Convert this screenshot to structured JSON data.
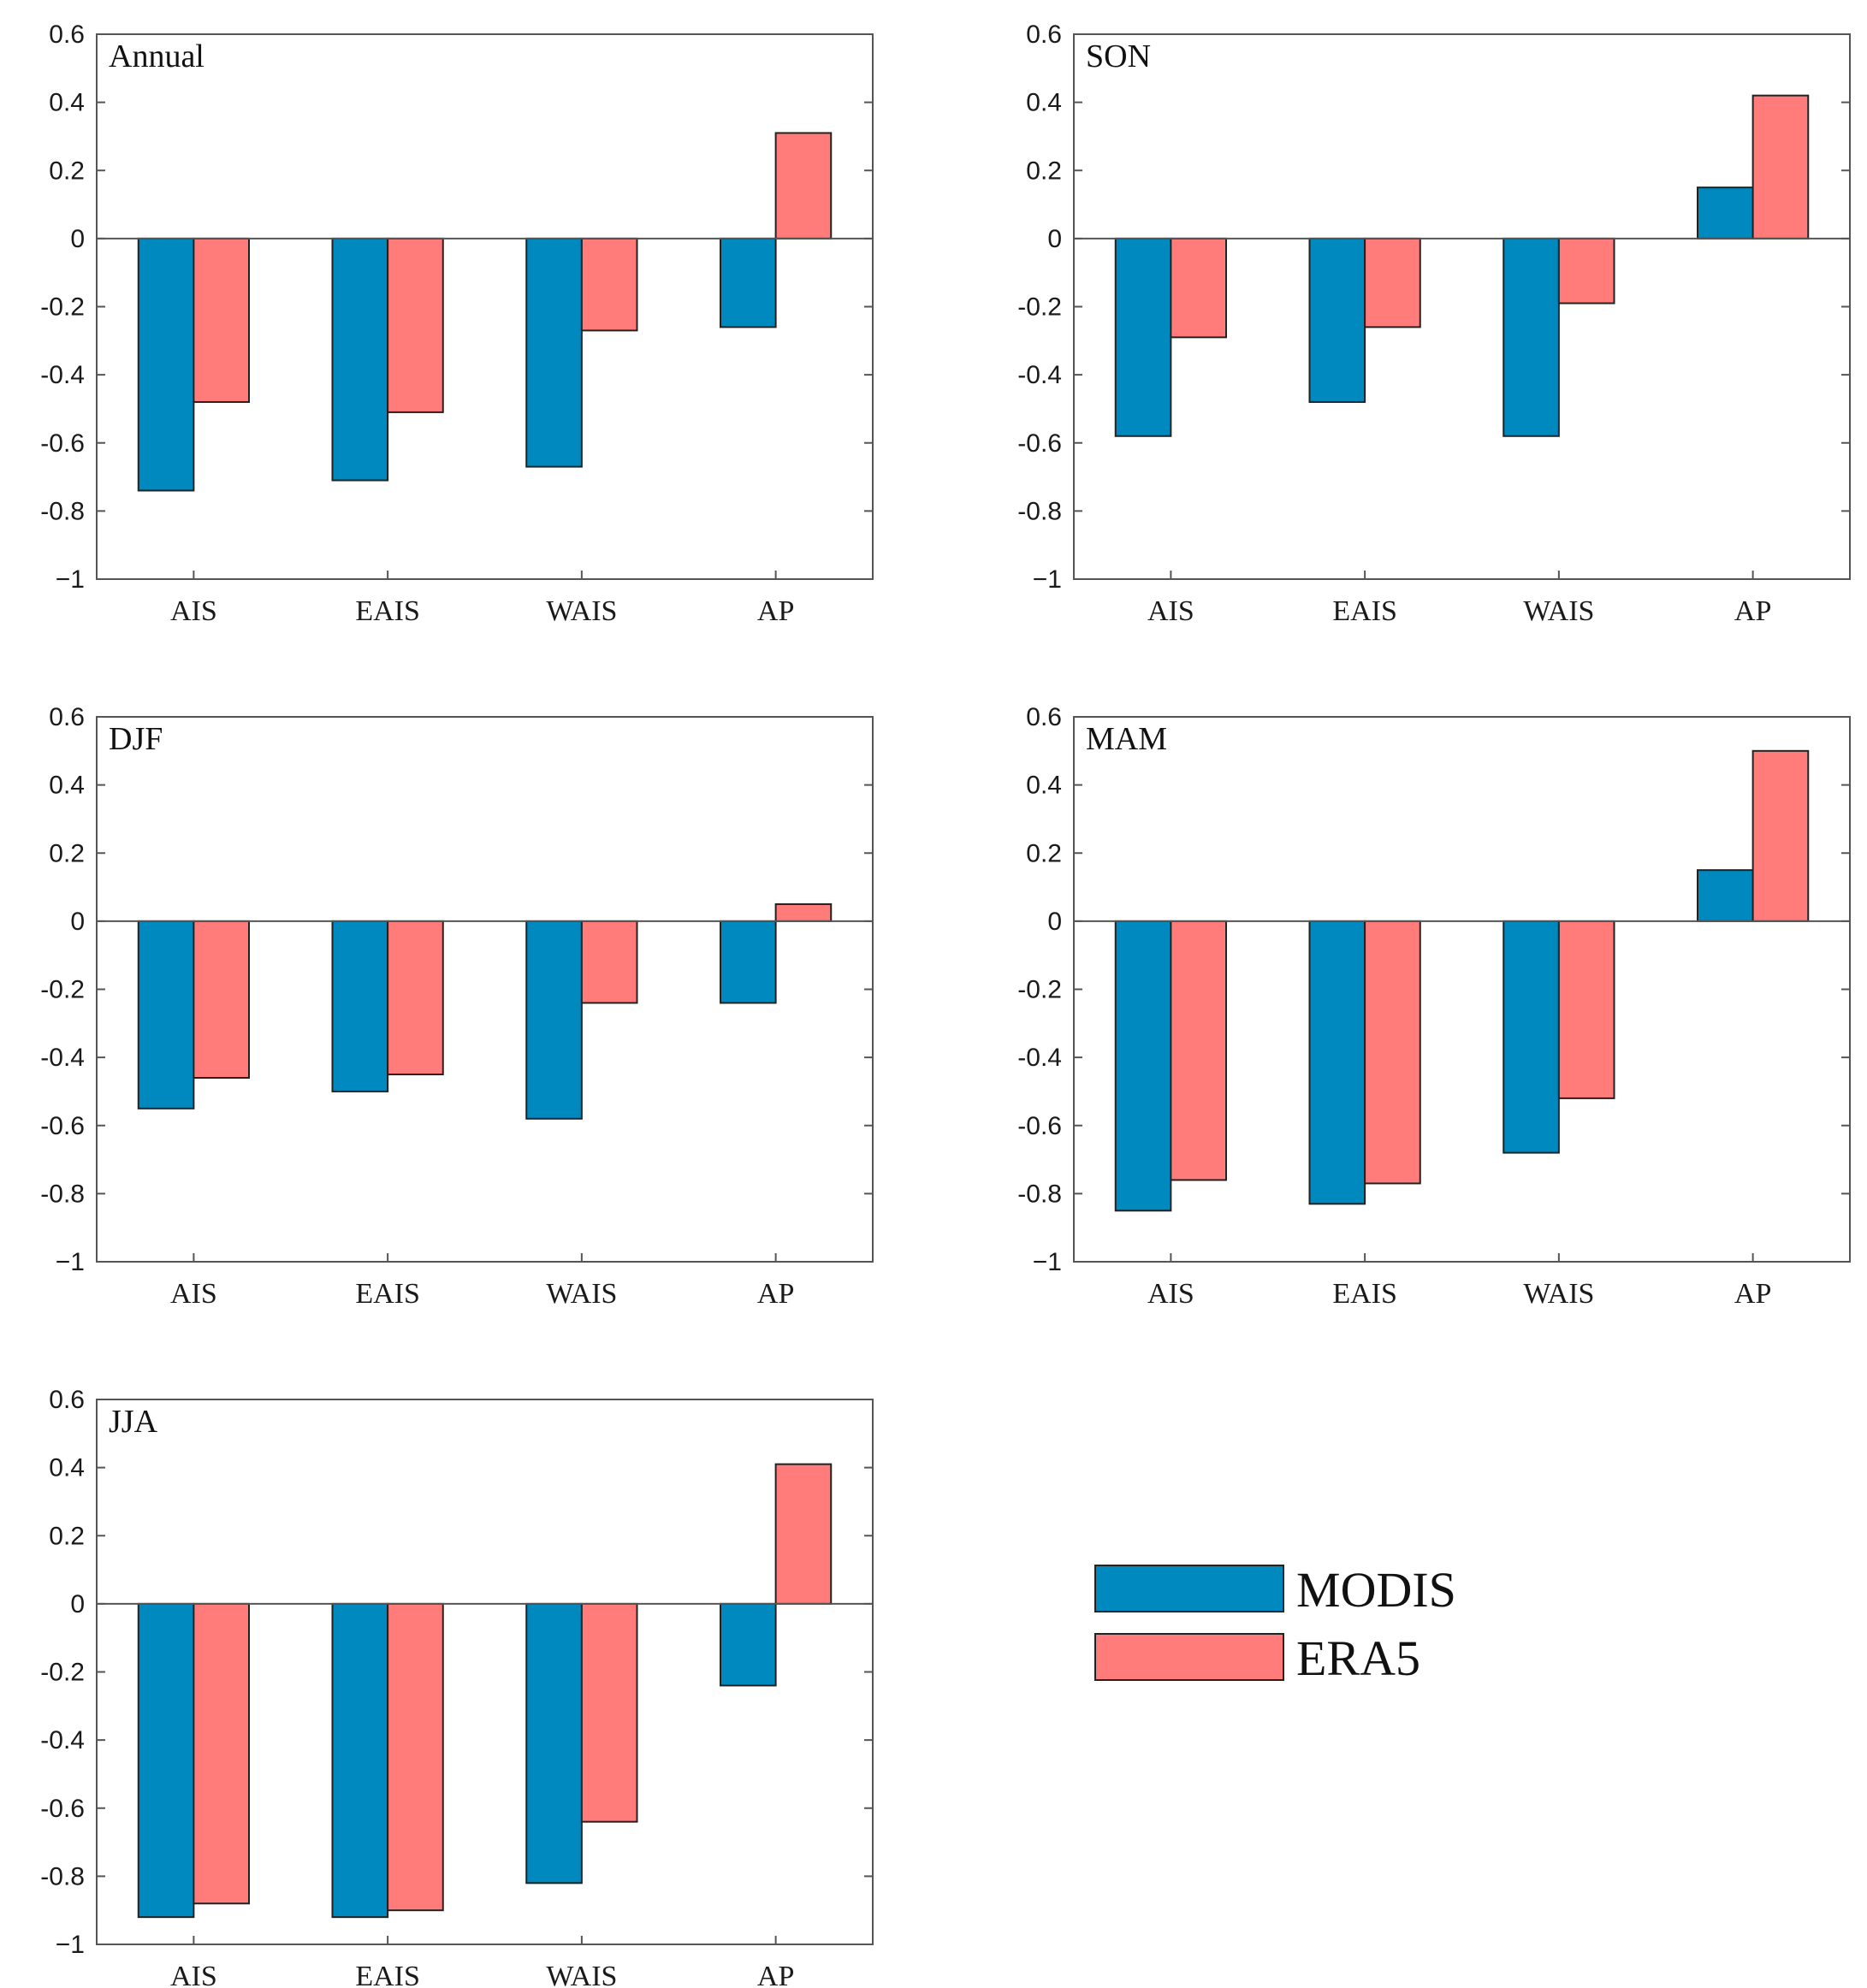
{
  "chart_data": [
    {
      "type": "bar",
      "title": "Annual",
      "categories": [
        "AIS",
        "EAIS",
        "WAIS",
        "AP"
      ],
      "series": [
        {
          "name": "MODIS",
          "values": [
            -0.74,
            -0.71,
            -0.67,
            -0.26
          ]
        },
        {
          "name": "ERA5",
          "values": [
            -0.48,
            -0.51,
            -0.27,
            0.31
          ]
        }
      ],
      "ylim": [
        -1,
        0.6
      ],
      "yticks": [
        "0.6",
        "0.4",
        "0.2",
        "0",
        "-0.2",
        "-0.4",
        "-0.6",
        "-0.8",
        "−1"
      ]
    },
    {
      "type": "bar",
      "title": "SON",
      "categories": [
        "AIS",
        "EAIS",
        "WAIS",
        "AP"
      ],
      "series": [
        {
          "name": "MODIS",
          "values": [
            -0.58,
            -0.48,
            -0.58,
            0.15
          ]
        },
        {
          "name": "ERA5",
          "values": [
            -0.29,
            -0.26,
            -0.19,
            0.42
          ]
        }
      ],
      "ylim": [
        -1,
        0.6
      ],
      "yticks": [
        "0.6",
        "0.4",
        "0.2",
        "0",
        "-0.2",
        "-0.4",
        "-0.6",
        "-0.8",
        "−1"
      ]
    },
    {
      "type": "bar",
      "title": "DJF",
      "categories": [
        "AIS",
        "EAIS",
        "WAIS",
        "AP"
      ],
      "series": [
        {
          "name": "MODIS",
          "values": [
            -0.55,
            -0.5,
            -0.58,
            -0.24
          ]
        },
        {
          "name": "ERA5",
          "values": [
            -0.46,
            -0.45,
            -0.24,
            0.05
          ]
        }
      ],
      "ylim": [
        -1,
        0.6
      ],
      "yticks": [
        "0.6",
        "0.4",
        "0.2",
        "0",
        "-0.2",
        "-0.4",
        "-0.6",
        "-0.8",
        "−1"
      ]
    },
    {
      "type": "bar",
      "title": "MAM",
      "categories": [
        "AIS",
        "EAIS",
        "WAIS",
        "AP"
      ],
      "series": [
        {
          "name": "MODIS",
          "values": [
            -0.85,
            -0.83,
            -0.68,
            0.15
          ]
        },
        {
          "name": "ERA5",
          "values": [
            -0.76,
            -0.77,
            -0.52,
            0.5
          ]
        }
      ],
      "ylim": [
        -1,
        0.6
      ],
      "yticks": [
        "0.6",
        "0.4",
        "0.2",
        "0",
        "-0.2",
        "-0.4",
        "-0.6",
        "-0.8",
        "−1"
      ]
    },
    {
      "type": "bar",
      "title": "JJA",
      "categories": [
        "AIS",
        "EAIS",
        "WAIS",
        "AP"
      ],
      "series": [
        {
          "name": "MODIS",
          "values": [
            -0.92,
            -0.92,
            -0.82,
            -0.24
          ]
        },
        {
          "name": "ERA5",
          "values": [
            -0.88,
            -0.9,
            -0.64,
            0.41
          ]
        }
      ],
      "ylim": [
        -1,
        0.6
      ],
      "yticks": [
        "0.6",
        "0.4",
        "0.2",
        "0",
        "-0.2",
        "-0.4",
        "-0.6",
        "-0.8",
        "−1"
      ]
    }
  ],
  "legend": {
    "entries": [
      {
        "name": "MODIS",
        "color": "#0089bf"
      },
      {
        "name": "ERA5",
        "color": "#ff7c7b"
      }
    ]
  },
  "colors": {
    "MODIS": "#0089bf",
    "ERA5": "#ff7c7b",
    "axis": "#555555",
    "bar_edge": "#222222"
  }
}
